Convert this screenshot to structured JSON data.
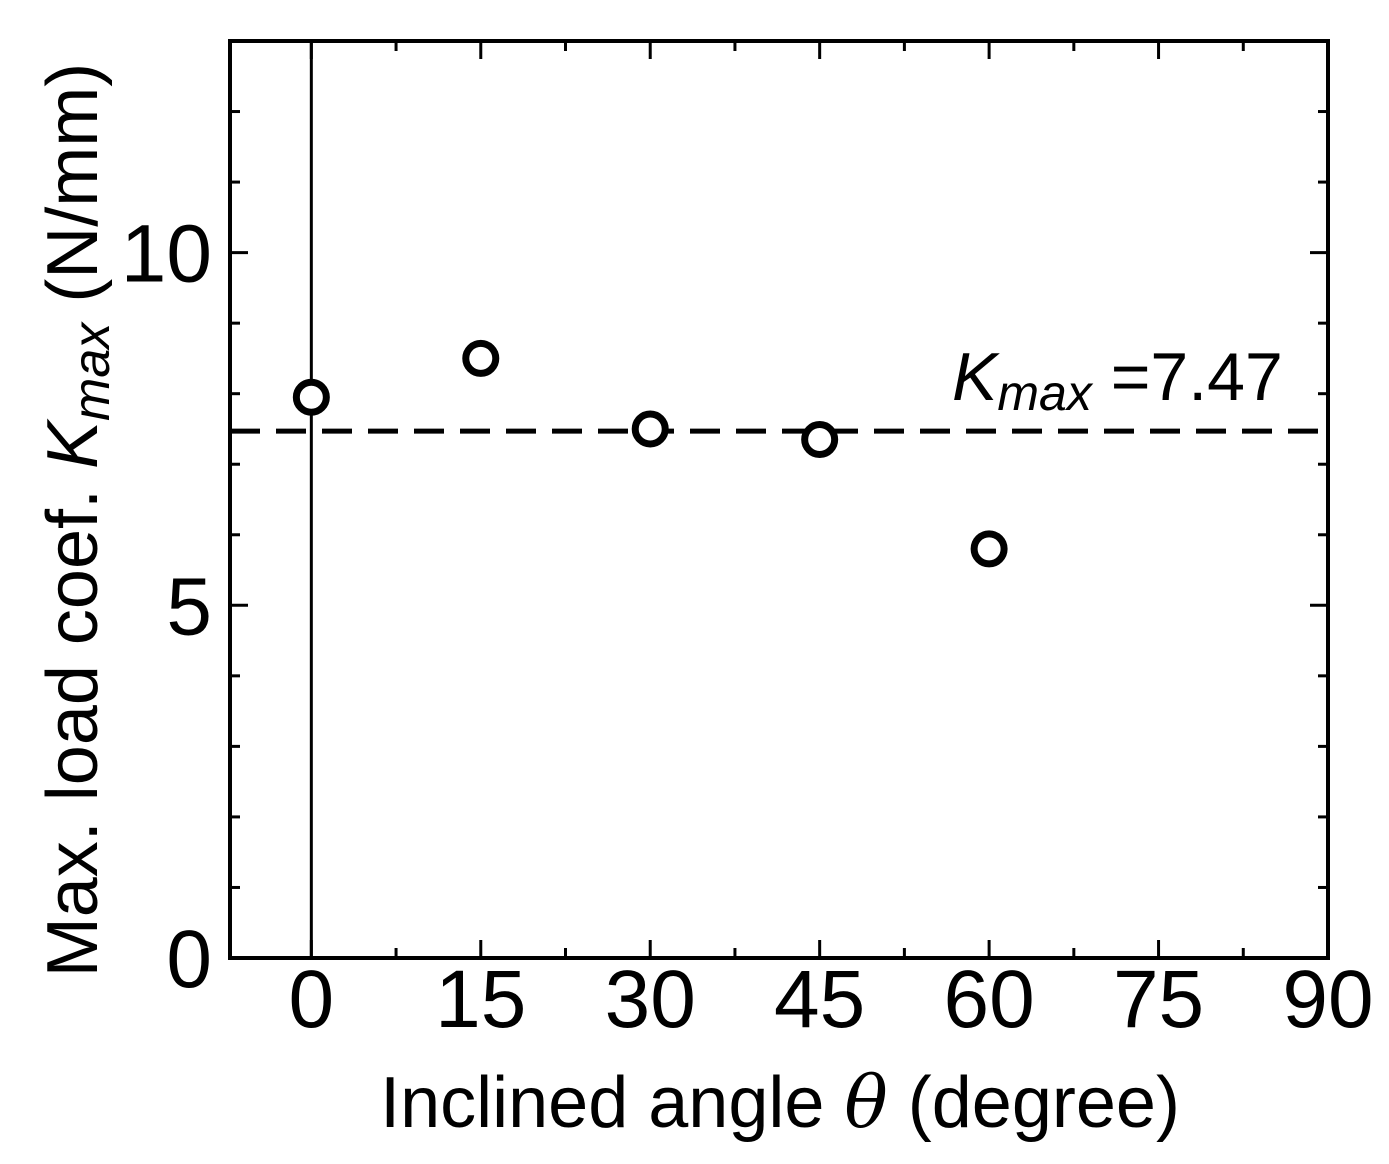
{
  "chart_data": {
    "type": "scatter",
    "title": "",
    "xlabel": {
      "main": "Inclined angle ",
      "symbol": "θ",
      "unit": " (degree)"
    },
    "ylabel": {
      "main": "Max. load coef. ",
      "symbol": "K",
      "subscript": "max",
      "unit": " (N/mm)"
    },
    "xlim": [
      -7.2,
      90
    ],
    "ylim": [
      0,
      13
    ],
    "xticks": [
      0,
      15,
      30,
      45,
      60,
      75,
      90
    ],
    "xtick_labels": [
      "0",
      "15",
      "30",
      "45",
      "60",
      "75",
      "90"
    ],
    "x_minor_step": 7.5,
    "yticks": [
      0,
      5,
      10
    ],
    "ytick_labels": [
      "0",
      "5",
      "10"
    ],
    "y_minor_step": 1,
    "grid": false,
    "marker": "open-circle",
    "series": [
      {
        "x": [
          0,
          15,
          30,
          45,
          60
        ],
        "y": [
          7.95,
          8.5,
          7.5,
          7.35,
          5.8
        ]
      }
    ],
    "reference_lines": [
      {
        "orientation": "horizontal",
        "value": 7.47,
        "style": "dashed"
      },
      {
        "orientation": "vertical",
        "value": 0,
        "style": "solid"
      }
    ],
    "annotation": {
      "symbol": "K",
      "subscript": "max",
      "text": " =7.47"
    }
  }
}
